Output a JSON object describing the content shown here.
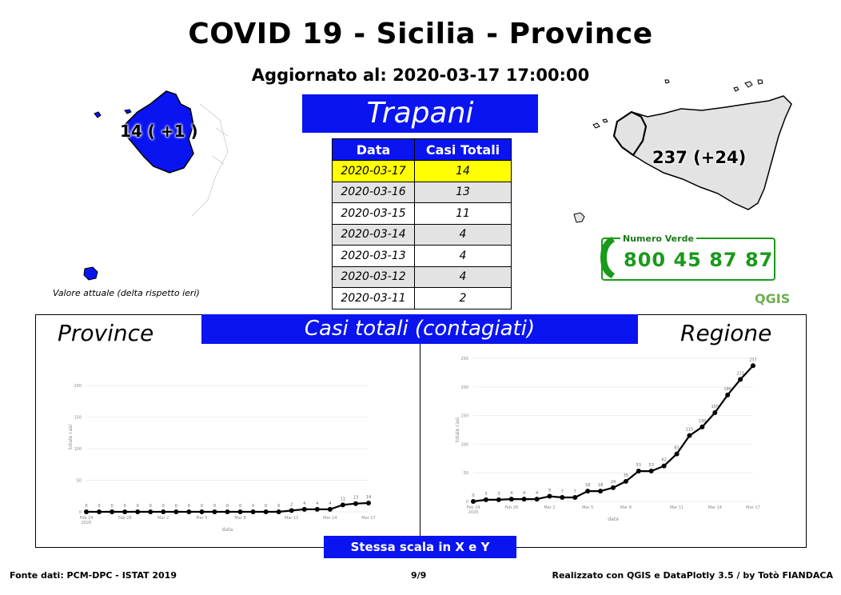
{
  "title": "COVID 19 - Sicilia - Province",
  "updated": "Aggiornato al: 2020-03-17 17:00:00",
  "province_name": "Trapani",
  "table": {
    "headers": [
      "Data",
      "Casi Totali"
    ],
    "rows": [
      {
        "date": "2020-03-17",
        "value": "14"
      },
      {
        "date": "2020-03-16",
        "value": "13"
      },
      {
        "date": "2020-03-15",
        "value": "11"
      },
      {
        "date": "2020-03-14",
        "value": "4"
      },
      {
        "date": "2020-03-13",
        "value": "4"
      },
      {
        "date": "2020-03-12",
        "value": "4"
      },
      {
        "date": "2020-03-11",
        "value": "2"
      }
    ]
  },
  "province_map_label": "14 ( +1 )",
  "region_map_label": "237 (+24)",
  "legend_note": "Valore attuale (delta rispetto ieri)",
  "numero_verde": {
    "label": "Numero Verde",
    "number": "800 45 87 87"
  },
  "qgis_logo": "QGIS",
  "panel": {
    "banner": "Casi totali (contagiati)",
    "left_label": "Province",
    "right_label": "Regione",
    "scale_note": "Stessa scala in X e Y"
  },
  "footer": {
    "left": "Fonte dati: PCM-DPC - ISTAT 2019",
    "page": "9/9",
    "right": "Realizzato con QGIS e DataPlotly 3.5 / by Totò FIANDACA"
  },
  "colors": {
    "banner_blue": "#0a14f0",
    "highlight_yellow": "#ffff00",
    "map_blue": "#0a14f0",
    "green": "#1a9a1a"
  },
  "chart_data": [
    {
      "type": "line",
      "xlabel": "data",
      "ylabel": "totale casi",
      "x": [
        "2020-02-24",
        "2020-02-25",
        "2020-02-26",
        "2020-02-27",
        "2020-02-28",
        "2020-02-29",
        "2020-03-01",
        "2020-03-02",
        "2020-03-03",
        "2020-03-04",
        "2020-03-05",
        "2020-03-06",
        "2020-03-07",
        "2020-03-08",
        "2020-03-09",
        "2020-03-10",
        "2020-03-11",
        "2020-03-12",
        "2020-03-13",
        "2020-03-14",
        "2020-03-15",
        "2020-03-16",
        "2020-03-17"
      ],
      "values": [
        0,
        0,
        0,
        0,
        0,
        0,
        0,
        0,
        0,
        0,
        0,
        0,
        0,
        0,
        0,
        0,
        2,
        4,
        4,
        4,
        11,
        13,
        14
      ],
      "point_labels": [
        "0",
        "0",
        "0",
        "0",
        "0",
        "0",
        "0",
        "0",
        "0",
        "0",
        "0",
        "0",
        "0",
        "0",
        "0",
        "0",
        "2",
        "4",
        "4",
        "4",
        "11",
        "13",
        "14"
      ],
      "x_ticks": [
        "Feb 24\n2020",
        "Feb 28",
        "Mar 2",
        "Mar 5",
        "Mar 8",
        "Mar 11",
        "Mar 14",
        "Mar 17"
      ],
      "y_ticks": [
        "0",
        "50",
        "100",
        "150",
        "200"
      ],
      "ylim": [
        0,
        237
      ]
    },
    {
      "type": "line",
      "xlabel": "data",
      "ylabel": "totale casi",
      "x": [
        "2020-02-24",
        "2020-02-25",
        "2020-02-26",
        "2020-02-27",
        "2020-02-28",
        "2020-02-29",
        "2020-03-01",
        "2020-03-02",
        "2020-03-03",
        "2020-03-04",
        "2020-03-05",
        "2020-03-06",
        "2020-03-07",
        "2020-03-08",
        "2020-03-09",
        "2020-03-10",
        "2020-03-11",
        "2020-03-12",
        "2020-03-13",
        "2020-03-14",
        "2020-03-15",
        "2020-03-16",
        "2020-03-17"
      ],
      "values": [
        0,
        3,
        3,
        4,
        4,
        4,
        9,
        7,
        7,
        18,
        18,
        24,
        35,
        53,
        53,
        62,
        83,
        115,
        130,
        155,
        186,
        213,
        237
      ],
      "point_labels": [
        "0",
        "3",
        "3",
        "4",
        "4",
        "4",
        "9",
        "7",
        "7",
        "18",
        "18",
        "24",
        "35",
        "53",
        "53",
        "62",
        "83",
        "115",
        "130",
        "155",
        "186",
        "213",
        "237"
      ],
      "x_ticks": [
        "Feb 24\n2020",
        "Feb 28",
        "Mar 2",
        "Mar 5",
        "Mar 8",
        "Mar 11",
        "Mar 14",
        "Mar 17"
      ],
      "y_ticks": [
        "0",
        "50",
        "100",
        "150",
        "200",
        "250"
      ],
      "ylim": [
        0,
        250
      ]
    }
  ]
}
